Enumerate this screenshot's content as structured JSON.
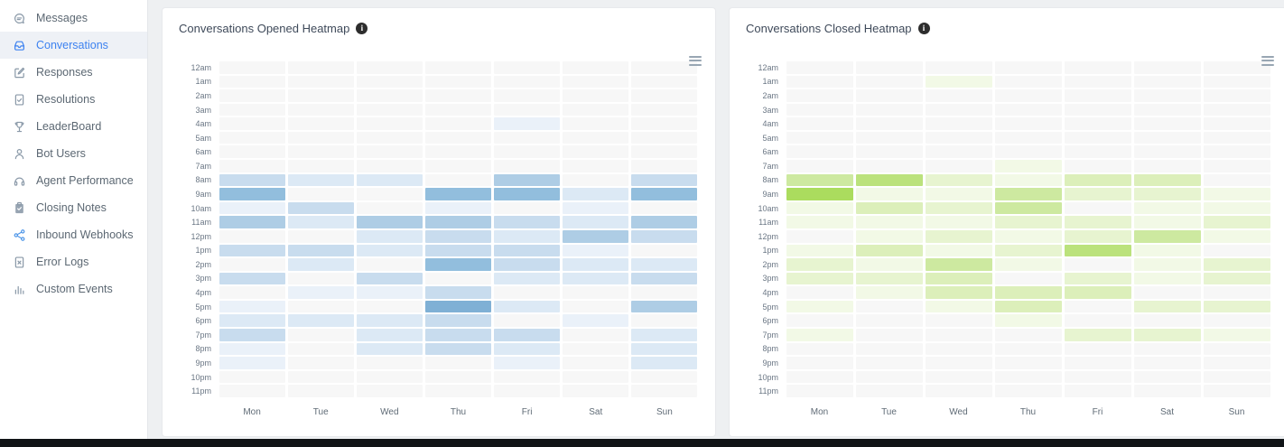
{
  "page": {
    "background_color": "#eef0f2",
    "card_background": "#ffffff",
    "bottom_bar_color": "#111417",
    "accent_color": "#3d82f0"
  },
  "sidebar": {
    "items": [
      {
        "label": "Messages",
        "icon": "message-icon",
        "active": false
      },
      {
        "label": "Conversations",
        "icon": "inbox-icon",
        "active": true
      },
      {
        "label": "Responses",
        "icon": "edit-icon",
        "active": false
      },
      {
        "label": "Resolutions",
        "icon": "document-check-icon",
        "active": false
      },
      {
        "label": "LeaderBoard",
        "icon": "trophy-icon",
        "active": false
      },
      {
        "label": "Bot Users",
        "icon": "user-icon",
        "active": false
      },
      {
        "label": "Agent Performance",
        "icon": "headset-icon",
        "active": false
      },
      {
        "label": "Closing Notes",
        "icon": "clipboard-icon",
        "active": false
      },
      {
        "label": "Inbound Webhooks",
        "icon": "webhook-icon",
        "active": false
      },
      {
        "label": "Error Logs",
        "icon": "document-x-icon",
        "active": false
      },
      {
        "label": "Custom Events",
        "icon": "bar-chart-icon",
        "active": false
      }
    ]
  },
  "chart_data": [
    {
      "type": "heatmap",
      "title": "Conversations Opened Heatmap",
      "info_glyph": "i",
      "icons": {
        "info": "info-icon",
        "menu": "hamburger-menu-icon"
      },
      "x_categories": [
        "Mon",
        "Tue",
        "Wed",
        "Thu",
        "Fri",
        "Sat",
        "Sun"
      ],
      "y_categories": [
        "12am",
        "1am",
        "2am",
        "3am",
        "4am",
        "5am",
        "6am",
        "7am",
        "8am",
        "9am",
        "10am",
        "11am",
        "12pm",
        "1pm",
        "2pm",
        "3pm",
        "4pm",
        "5pm",
        "6pm",
        "7pm",
        "8pm",
        "9pm",
        "10pm",
        "11pm"
      ],
      "value_scale": "relative intensity 0 (none) to 6 (max), inferred from cell color; no numeric labels shown",
      "palette": [
        "#f7f7f7",
        "#eaf1f9",
        "#dce9f5",
        "#c8dcee",
        "#aecde5",
        "#92bedd",
        "#7fb0d5"
      ],
      "values": [
        [
          0,
          0,
          0,
          0,
          0,
          0,
          0
        ],
        [
          0,
          0,
          0,
          0,
          0,
          0,
          0
        ],
        [
          0,
          0,
          0,
          0,
          0,
          0,
          0
        ],
        [
          0,
          0,
          0,
          0,
          0,
          0,
          0
        ],
        [
          0,
          0,
          0,
          0,
          1,
          0,
          0
        ],
        [
          0,
          0,
          0,
          0,
          0,
          0,
          0
        ],
        [
          0,
          0,
          0,
          0,
          0,
          0,
          0
        ],
        [
          0,
          0,
          0,
          0,
          0,
          0,
          0
        ],
        [
          3,
          2,
          2,
          0,
          4,
          0,
          3
        ],
        [
          5,
          0,
          0,
          5,
          5,
          2,
          5
        ],
        [
          1,
          3,
          0,
          1,
          0,
          1,
          0
        ],
        [
          4,
          2,
          4,
          4,
          3,
          2,
          4
        ],
        [
          0,
          0,
          2,
          3,
          2,
          4,
          3
        ],
        [
          3,
          3,
          2,
          3,
          3,
          1,
          0
        ],
        [
          0,
          2,
          0,
          5,
          3,
          2,
          2
        ],
        [
          3,
          0,
          3,
          0,
          2,
          2,
          3
        ],
        [
          0,
          1,
          1,
          3,
          0,
          0,
          0
        ],
        [
          1,
          0,
          0,
          6,
          2,
          0,
          4
        ],
        [
          2,
          2,
          2,
          3,
          0,
          1,
          0
        ],
        [
          3,
          0,
          2,
          3,
          3,
          0,
          2
        ],
        [
          1,
          0,
          2,
          3,
          2,
          0,
          2
        ],
        [
          1,
          0,
          0,
          0,
          1,
          0,
          2
        ],
        [
          0,
          0,
          0,
          0,
          0,
          0,
          0
        ],
        [
          0,
          0,
          0,
          0,
          0,
          0,
          0
        ]
      ]
    },
    {
      "type": "heatmap",
      "title": "Conversations Closed Heatmap",
      "info_glyph": "i",
      "icons": {
        "info": "info-icon",
        "menu": "hamburger-menu-icon"
      },
      "x_categories": [
        "Mon",
        "Tue",
        "Wed",
        "Thu",
        "Fri",
        "Sat",
        "Sun"
      ],
      "y_categories": [
        "12am",
        "1am",
        "2am",
        "3am",
        "4am",
        "5am",
        "6am",
        "7am",
        "8am",
        "9am",
        "10am",
        "11am",
        "12pm",
        "1pm",
        "2pm",
        "3pm",
        "4pm",
        "5pm",
        "6pm",
        "7pm",
        "8pm",
        "9pm",
        "10pm",
        "11pm"
      ],
      "value_scale": "relative intensity 0 (none) to 6 (max), inferred from cell color; no numeric labels shown",
      "palette": [
        "#f7f7f7",
        "#f2f9e6",
        "#e7f4d0",
        "#dcefba",
        "#cde9a0",
        "#bbe27c",
        "#abdc5e"
      ],
      "values": [
        [
          0,
          0,
          0,
          0,
          0,
          0,
          0
        ],
        [
          0,
          0,
          1,
          0,
          0,
          0,
          0
        ],
        [
          0,
          0,
          0,
          0,
          0,
          0,
          0
        ],
        [
          0,
          0,
          0,
          0,
          0,
          0,
          0
        ],
        [
          0,
          0,
          0,
          0,
          0,
          0,
          0
        ],
        [
          0,
          0,
          0,
          0,
          0,
          0,
          0
        ],
        [
          0,
          0,
          0,
          0,
          0,
          0,
          0
        ],
        [
          0,
          0,
          0,
          1,
          0,
          0,
          0
        ],
        [
          4,
          5,
          2,
          1,
          3,
          3,
          0
        ],
        [
          6,
          1,
          1,
          4,
          2,
          2,
          1
        ],
        [
          1,
          3,
          2,
          4,
          0,
          1,
          1
        ],
        [
          1,
          1,
          1,
          2,
          2,
          1,
          2
        ],
        [
          0,
          1,
          2,
          1,
          2,
          4,
          1
        ],
        [
          1,
          3,
          1,
          2,
          5,
          1,
          0
        ],
        [
          2,
          1,
          4,
          1,
          0,
          1,
          2
        ],
        [
          2,
          2,
          3,
          0,
          2,
          1,
          2
        ],
        [
          0,
          1,
          3,
          3,
          3,
          0,
          0
        ],
        [
          1,
          0,
          1,
          3,
          0,
          2,
          2
        ],
        [
          0,
          0,
          0,
          1,
          0,
          0,
          0
        ],
        [
          1,
          0,
          0,
          0,
          2,
          2,
          1
        ],
        [
          0,
          0,
          0,
          0,
          0,
          0,
          0
        ],
        [
          0,
          0,
          0,
          0,
          0,
          0,
          0
        ],
        [
          0,
          0,
          0,
          0,
          0,
          0,
          0
        ],
        [
          0,
          0,
          0,
          0,
          0,
          0,
          0
        ]
      ]
    }
  ]
}
